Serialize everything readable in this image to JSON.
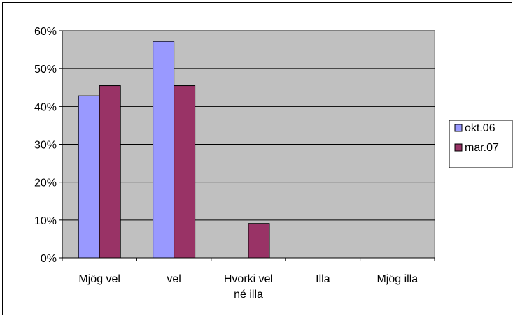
{
  "chart_data": {
    "type": "bar",
    "categories": [
      [
        "Mjög vel"
      ],
      [
        "vel"
      ],
      [
        "Hvorki vel",
        "né illa"
      ],
      [
        "Illa"
      ],
      [
        "Mjög illa"
      ]
    ],
    "series": [
      {
        "name": "okt.06",
        "color": "#9999ff",
        "values": [
          42.8,
          57.2,
          0,
          0,
          0
        ]
      },
      {
        "name": "mar.07",
        "color": "#993366",
        "values": [
          45.5,
          45.5,
          9.1,
          0,
          0
        ]
      }
    ],
    "ylim": [
      0,
      60
    ],
    "yticks": [
      0,
      10,
      20,
      30,
      40,
      50,
      60
    ],
    "ytick_labels": [
      "0%",
      "10%",
      "20%",
      "30%",
      "40%",
      "50%",
      "60%"
    ],
    "title": "",
    "xlabel": "",
    "ylabel": "",
    "grid": true,
    "legend": "right",
    "plot_background": "#c0c0c0"
  }
}
